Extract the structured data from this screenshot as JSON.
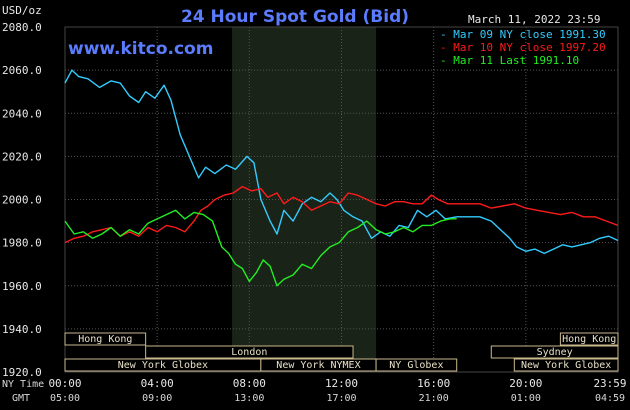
{
  "header": {
    "unit": "USD/oz",
    "title": "24 Hour Spot Gold (Bid)",
    "date": "March 11, 2022 23:59",
    "site": "www.kitco.com"
  },
  "colors": {
    "mar09": "#33ccff",
    "mar10": "#ff1a1a",
    "mar11": "#22ee22",
    "grid": "#555555",
    "shade": "#1a2318",
    "title": "#5b7cff"
  },
  "chart_data": {
    "type": "line",
    "title": "24 Hour Spot Gold (Bid)",
    "ylabel": "USD/oz",
    "ylim": [
      1920,
      2080
    ],
    "y_ticks": [
      "1920.0",
      "1940.0",
      "1960.0",
      "1980.0",
      "2000.0",
      "2020.0",
      "2040.0",
      "2060.0",
      "2080.0"
    ],
    "x_ticks_ny": [
      "00:00",
      "04:00",
      "08:00",
      "12:00",
      "16:00",
      "20:00",
      "23:59"
    ],
    "x_ticks_gmt": [
      "05:00",
      "09:00",
      "13:00",
      "17:00",
      "21:00",
      "01:00",
      "04:59"
    ],
    "x_row_labels": [
      "NY Time",
      "GMT"
    ],
    "xlim_hours": [
      0,
      24
    ],
    "shaded_region_hours": [
      7.25,
      13.5
    ],
    "legend": [
      {
        "key": "mar09",
        "label": "Mar 09 NY close 1991.30"
      },
      {
        "key": "mar10",
        "label": "Mar 10 NY close 1997.20"
      },
      {
        "key": "mar11",
        "label": "Mar 11 Last 1991.10"
      }
    ],
    "series": [
      {
        "key": "mar09",
        "name": "Mar 09 NY close 1991.30",
        "points": [
          [
            0,
            2054
          ],
          [
            0.3,
            2060
          ],
          [
            0.6,
            2057
          ],
          [
            1,
            2056
          ],
          [
            1.5,
            2052
          ],
          [
            2,
            2055
          ],
          [
            2.4,
            2054
          ],
          [
            2.8,
            2048
          ],
          [
            3.2,
            2045
          ],
          [
            3.5,
            2050
          ],
          [
            3.9,
            2047
          ],
          [
            4.3,
            2053
          ],
          [
            4.6,
            2046
          ],
          [
            5,
            2030
          ],
          [
            5.4,
            2020
          ],
          [
            5.8,
            2010
          ],
          [
            6.1,
            2015
          ],
          [
            6.5,
            2012
          ],
          [
            7,
            2016
          ],
          [
            7.4,
            2014
          ],
          [
            7.9,
            2020
          ],
          [
            8.2,
            2017
          ],
          [
            8.5,
            2000
          ],
          [
            8.9,
            1990
          ],
          [
            9.2,
            1984
          ],
          [
            9.5,
            1995
          ],
          [
            9.9,
            1990
          ],
          [
            10.3,
            1998
          ],
          [
            10.7,
            2001
          ],
          [
            11.1,
            1999
          ],
          [
            11.5,
            2003
          ],
          [
            11.8,
            2000
          ],
          [
            12.1,
            1995
          ],
          [
            12.5,
            1992
          ],
          [
            12.9,
            1990
          ],
          [
            13.3,
            1982
          ],
          [
            13.7,
            1985
          ],
          [
            14.1,
            1983
          ],
          [
            14.5,
            1988
          ],
          [
            14.9,
            1987
          ],
          [
            15.3,
            1995
          ],
          [
            15.7,
            1992
          ],
          [
            16.1,
            1995
          ],
          [
            16.5,
            1991
          ],
          [
            17,
            1992
          ],
          [
            17.5,
            1992
          ],
          [
            18,
            1992
          ],
          [
            18.5,
            1990
          ],
          [
            18.9,
            1986
          ],
          [
            19.3,
            1982
          ],
          [
            19.6,
            1978
          ],
          [
            20,
            1976
          ],
          [
            20.4,
            1977
          ],
          [
            20.8,
            1975
          ],
          [
            21.2,
            1977
          ],
          [
            21.6,
            1979
          ],
          [
            22,
            1978
          ],
          [
            22.4,
            1979
          ],
          [
            22.8,
            1980
          ],
          [
            23.2,
            1982
          ],
          [
            23.6,
            1983
          ],
          [
            24,
            1981
          ]
        ]
      },
      {
        "key": "mar10",
        "name": "Mar 10 NY close 1997.20",
        "points": [
          [
            0,
            1980
          ],
          [
            0.4,
            1982
          ],
          [
            0.8,
            1983
          ],
          [
            1.2,
            1985
          ],
          [
            1.6,
            1986
          ],
          [
            2,
            1987
          ],
          [
            2.4,
            1983
          ],
          [
            2.8,
            1985
          ],
          [
            3.2,
            1983
          ],
          [
            3.6,
            1987
          ],
          [
            4,
            1985
          ],
          [
            4.4,
            1988
          ],
          [
            4.8,
            1987
          ],
          [
            5.2,
            1985
          ],
          [
            5.6,
            1990
          ],
          [
            5.9,
            1995
          ],
          [
            6.2,
            1997
          ],
          [
            6.5,
            2000
          ],
          [
            6.9,
            2002
          ],
          [
            7.3,
            2003
          ],
          [
            7.7,
            2006
          ],
          [
            8.1,
            2004
          ],
          [
            8.5,
            2005
          ],
          [
            8.8,
            2001
          ],
          [
            9.2,
            2003
          ],
          [
            9.5,
            1998
          ],
          [
            9.9,
            2001
          ],
          [
            10.3,
            1999
          ],
          [
            10.7,
            1995
          ],
          [
            11.1,
            1997
          ],
          [
            11.5,
            1999
          ],
          [
            11.9,
            1998
          ],
          [
            12.3,
            2003
          ],
          [
            12.7,
            2002
          ],
          [
            13.1,
            2000
          ],
          [
            13.5,
            1998
          ],
          [
            13.9,
            1997
          ],
          [
            14.3,
            1999
          ],
          [
            14.7,
            1999
          ],
          [
            15.1,
            1998
          ],
          [
            15.5,
            1998
          ],
          [
            15.9,
            2002
          ],
          [
            16.2,
            2000
          ],
          [
            16.6,
            1998
          ],
          [
            17,
            1998
          ],
          [
            17.5,
            1998
          ],
          [
            18,
            1998
          ],
          [
            18.5,
            1996
          ],
          [
            19,
            1997
          ],
          [
            19.5,
            1998
          ],
          [
            20,
            1996
          ],
          [
            20.5,
            1995
          ],
          [
            21,
            1994
          ],
          [
            21.5,
            1993
          ],
          [
            22,
            1994
          ],
          [
            22.5,
            1992
          ],
          [
            23,
            1992
          ],
          [
            23.5,
            1990
          ],
          [
            24,
            1988
          ]
        ]
      },
      {
        "key": "mar11",
        "name": "Mar 11 Last 1991.10",
        "points": [
          [
            0,
            1990
          ],
          [
            0.4,
            1984
          ],
          [
            0.8,
            1985
          ],
          [
            1.2,
            1982
          ],
          [
            1.6,
            1984
          ],
          [
            2,
            1987
          ],
          [
            2.4,
            1983
          ],
          [
            2.8,
            1986
          ],
          [
            3.2,
            1984
          ],
          [
            3.6,
            1989
          ],
          [
            4,
            1991
          ],
          [
            4.4,
            1993
          ],
          [
            4.8,
            1995
          ],
          [
            5.2,
            1991
          ],
          [
            5.6,
            1994
          ],
          [
            6,
            1993
          ],
          [
            6.4,
            1990
          ],
          [
            6.8,
            1978
          ],
          [
            7.1,
            1975
          ],
          [
            7.4,
            1970
          ],
          [
            7.7,
            1968
          ],
          [
            8,
            1962
          ],
          [
            8.3,
            1966
          ],
          [
            8.6,
            1972
          ],
          [
            8.9,
            1969
          ],
          [
            9.2,
            1960
          ],
          [
            9.5,
            1963
          ],
          [
            9.9,
            1965
          ],
          [
            10.3,
            1970
          ],
          [
            10.7,
            1968
          ],
          [
            11.1,
            1974
          ],
          [
            11.5,
            1978
          ],
          [
            11.9,
            1980
          ],
          [
            12.3,
            1985
          ],
          [
            12.7,
            1987
          ],
          [
            13.1,
            1990
          ],
          [
            13.5,
            1986
          ],
          [
            13.9,
            1984
          ],
          [
            14.3,
            1985
          ],
          [
            14.7,
            1987
          ],
          [
            15.1,
            1985
          ],
          [
            15.5,
            1988
          ],
          [
            15.9,
            1988
          ],
          [
            16.3,
            1990
          ],
          [
            16.7,
            1991
          ],
          [
            17,
            1991.1
          ]
        ]
      }
    ],
    "markets": [
      {
        "label": "Hong Kong",
        "row": 0,
        "start": 0,
        "end": 3.5
      },
      {
        "label": "Hong Kong",
        "row": 0,
        "start": 21.5,
        "end": 24
      },
      {
        "label": "London",
        "row": 1,
        "start": 3.5,
        "end": 12.5
      },
      {
        "label": "Sydney",
        "row": 1,
        "start": 18.5,
        "end": 24
      },
      {
        "label": "New York Globex",
        "row": 2,
        "start": 0,
        "end": 8.5
      },
      {
        "label": "New York NYMEX",
        "row": 2,
        "start": 8.5,
        "end": 13.5
      },
      {
        "label": "NY Globex",
        "row": 2,
        "start": 13.5,
        "end": 17
      },
      {
        "label": "New York Globex",
        "row": 2,
        "start": 19.5,
        "end": 24
      }
    ]
  }
}
